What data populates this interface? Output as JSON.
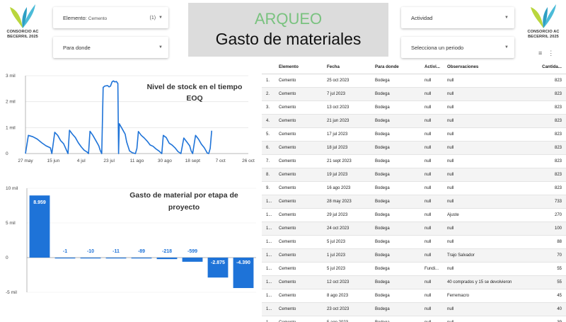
{
  "logo": {
    "text_line1": "CONSORCIO AC",
    "text_line2": "BECERRIL 2025",
    "leaf_color": "#4bbbd8",
    "accent_color": "#b9d63d"
  },
  "filters": {
    "elemento": {
      "label": "Elemento:",
      "value": "Cemento",
      "count": "(1)"
    },
    "para_donde": {
      "label": "Para donde"
    },
    "actividad": {
      "label": "Actividad"
    },
    "periodo": {
      "label": "Selecciona un periodo"
    }
  },
  "title": {
    "main": "ARQUEO",
    "sub": "Gasto de materiales"
  },
  "colors": {
    "series": "#1e73d8",
    "title_green": "#79c27f"
  },
  "charts": [
    {
      "type": "line",
      "title": "Nivel de stock en el tiempo",
      "subtitle": "EOQ",
      "y_ticks": [
        "3 mil",
        "2 mil",
        "1 mil",
        "0"
      ],
      "y_tick_values": [
        3000,
        2000,
        1000,
        0
      ],
      "ylim": [
        0,
        3000
      ],
      "x_ticks": [
        "27 may",
        "15 jun",
        "4 jul",
        "23 jul",
        "11 ago",
        "30 ago",
        "18 sept",
        "7 oct",
        "26 oct"
      ],
      "x_days": [
        0,
        127
      ],
      "x_tick_days": [
        0,
        19,
        38,
        57,
        76,
        95,
        114,
        133,
        152
      ],
      "x_values": [
        0,
        2,
        5,
        8,
        11,
        14,
        17,
        18,
        20,
        22,
        24,
        26,
        29,
        30,
        32,
        34,
        36,
        38,
        40,
        42,
        43,
        44,
        46,
        48,
        50,
        51,
        52,
        53,
        54,
        56,
        57,
        58,
        59,
        60,
        61,
        62,
        63,
        63.5,
        64,
        65,
        66,
        67,
        68,
        69,
        71,
        73,
        75,
        76,
        77,
        79,
        81,
        83,
        85,
        87,
        89,
        91,
        93,
        94,
        96,
        98,
        100,
        102,
        104,
        106,
        108,
        110,
        112,
        113,
        114,
        116,
        118,
        120,
        122,
        124,
        125,
        126,
        127
      ],
      "y_values": [
        0,
        700,
        650,
        560,
        420,
        300,
        220,
        0,
        820,
        700,
        500,
        380,
        0,
        900,
        750,
        620,
        420,
        260,
        130,
        60,
        0,
        860,
        700,
        500,
        300,
        120,
        0,
        2550,
        2600,
        2620,
        2570,
        2600,
        2760,
        2800,
        2760,
        2780,
        2700,
        0,
        1150,
        1050,
        950,
        850,
        750,
        450,
        100,
        30,
        0,
        200,
        850,
        700,
        600,
        480,
        330,
        280,
        180,
        100,
        0,
        700,
        620,
        400,
        330,
        220,
        80,
        0,
        600,
        450,
        300,
        100,
        0,
        700,
        560,
        360,
        220,
        20,
        0,
        200,
        880
      ]
    },
    {
      "type": "bar",
      "title": "Gasto de material por etapa de proyecto",
      "y_ticks": [
        "10 mil",
        "5 mil",
        "0",
        "-5 mil"
      ],
      "y_tick_values": [
        10000,
        5000,
        0,
        -5000
      ],
      "ylim": [
        -5000,
        10000
      ],
      "values": [
        8959,
        -1,
        -10,
        -11,
        -89,
        -218,
        -599,
        -2875,
        -4390
      ],
      "labels": [
        "8.959",
        "-1",
        "-10",
        "-11",
        "-89",
        "-218",
        "-599",
        "-2.875",
        "-4.390"
      ]
    }
  ],
  "table": {
    "headers": [
      "",
      "Elemento",
      "Fecha",
      "Para donde",
      "Activi...",
      "Observaciones",
      "Cantida..."
    ],
    "rows": [
      [
        "1.",
        "Cemento",
        "25 oct 2023",
        "Bodega",
        "null",
        "null",
        "823"
      ],
      [
        "2.",
        "Cemento",
        "7 jul 2023",
        "Bodega",
        "null",
        "null",
        "823"
      ],
      [
        "3.",
        "Cemento",
        "13 oct 2023",
        "Bodega",
        "null",
        "null",
        "823"
      ],
      [
        "4.",
        "Cemento",
        "21 jun 2023",
        "Bodega",
        "null",
        "null",
        "823"
      ],
      [
        "5.",
        "Cemento",
        "17 jul 2023",
        "Bodega",
        "null",
        "null",
        "823"
      ],
      [
        "6.",
        "Cemento",
        "18 jul 2023",
        "Bodega",
        "null",
        "null",
        "823"
      ],
      [
        "7.",
        "Cemento",
        "21 sept 2023",
        "Bodega",
        "null",
        "null",
        "823"
      ],
      [
        "8.",
        "Cemento",
        "19 jul 2023",
        "Bodega",
        "null",
        "null",
        "823"
      ],
      [
        "9.",
        "Cemento",
        "16 ago 2023",
        "Bodega",
        "null",
        "null",
        "823"
      ],
      [
        "1...",
        "Cemento",
        "28 may 2023",
        "Bodega",
        "null",
        "null",
        "733"
      ],
      [
        "1...",
        "Cemento",
        "29 jul 2023",
        "Bodega",
        "null",
        "Ajuste",
        "270"
      ],
      [
        "1...",
        "Cemento",
        "24 oct 2023",
        "Bodega",
        "null",
        "null",
        "100"
      ],
      [
        "1...",
        "Cemento",
        "5 jul 2023",
        "Bodega",
        "null",
        "null",
        "88"
      ],
      [
        "1...",
        "Cemento",
        "1 jul 2023",
        "Bodega",
        "null",
        "Trajo Salvador",
        "70"
      ],
      [
        "1...",
        "Cemento",
        "5 jul 2023",
        "Bodega",
        "Fundi...",
        "null",
        "55"
      ],
      [
        "1...",
        "Cemento",
        "12 oct 2023",
        "Bodega",
        "null",
        "40 comprados y 15 se devolvieron",
        "55"
      ],
      [
        "1...",
        "Cemento",
        "8 ago 2023",
        "Bodega",
        "null",
        "Ferremacro",
        "45"
      ],
      [
        "1...",
        "Cemento",
        "23 oct 2023",
        "Bodega",
        "null",
        "null",
        "40"
      ],
      [
        "1...",
        "Cemento",
        "5 ago 2023",
        "Bodega",
        "null",
        "null",
        "39"
      ]
    ]
  },
  "chart_data": [
    {
      "type": "line",
      "title": "Nivel de stock en el tiempo",
      "subtitle": "EOQ",
      "x_ticks": [
        "27 may",
        "15 jun",
        "4 jul",
        "23 jul",
        "11 ago",
        "30 ago",
        "18 sept",
        "7 oct",
        "26 oct"
      ],
      "ylim": [
        0,
        3000
      ],
      "series": [
        {
          "values_estimated_peak": 2800
        }
      ]
    },
    {
      "type": "bar",
      "title": "Gasto de material por etapa de proyecto",
      "values": [
        8959,
        -1,
        -10,
        -11,
        -89,
        -218,
        -599,
        -2875,
        -4390
      ],
      "ylim": [
        -5000,
        10000
      ]
    }
  ]
}
